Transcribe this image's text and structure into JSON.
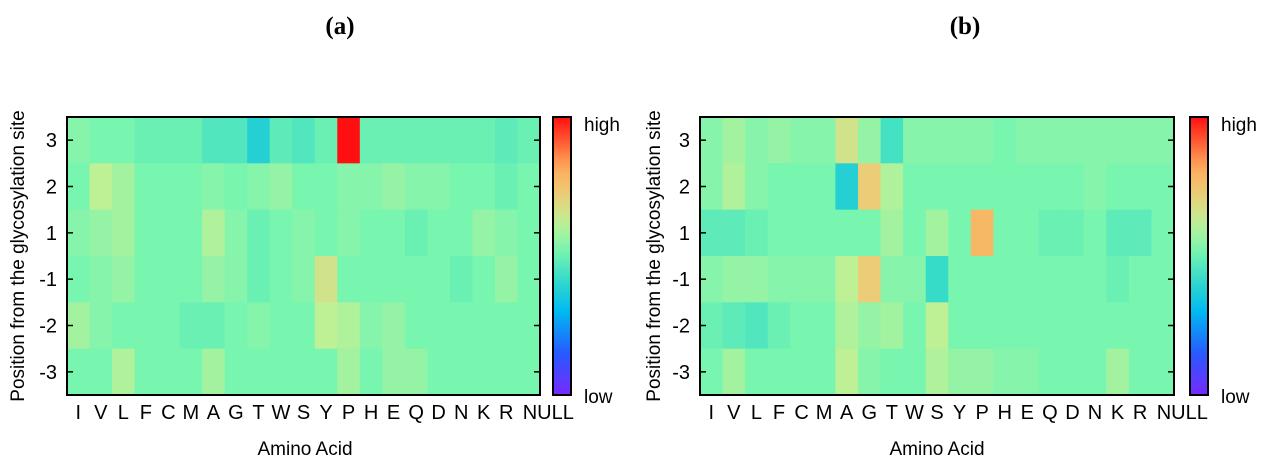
{
  "chart_data": [
    {
      "type": "heatmap",
      "panel_label": "(a)",
      "xlabel": "Amino Acid",
      "ylabel": "Position from the glycosylation site",
      "x_categories": [
        "I",
        "V",
        "L",
        "F",
        "C",
        "M",
        "A",
        "G",
        "T",
        "W",
        "S",
        "Y",
        "P",
        "H",
        "E",
        "Q",
        "D",
        "N",
        "K",
        "R",
        "NULL"
      ],
      "y_categories": [
        "3",
        "2",
        "1",
        "-1",
        "-2",
        "-3"
      ],
      "colorbar": {
        "high_label": "high",
        "low_label": "low",
        "colormap": "rainbow"
      },
      "value_range": [
        0,
        1
      ],
      "values": [
        [
          0.54,
          0.52,
          0.52,
          0.5,
          0.5,
          0.5,
          0.46,
          0.46,
          0.38,
          0.48,
          0.46,
          0.5,
          1.0,
          0.5,
          0.5,
          0.5,
          0.5,
          0.5,
          0.5,
          0.48,
          0.5
        ],
        [
          0.52,
          0.62,
          0.58,
          0.52,
          0.52,
          0.52,
          0.54,
          0.52,
          0.54,
          0.56,
          0.52,
          0.52,
          0.54,
          0.54,
          0.56,
          0.54,
          0.54,
          0.52,
          0.52,
          0.5,
          0.52
        ],
        [
          0.54,
          0.56,
          0.58,
          0.52,
          0.52,
          0.52,
          0.6,
          0.54,
          0.5,
          0.52,
          0.54,
          0.52,
          0.54,
          0.52,
          0.52,
          0.5,
          0.52,
          0.52,
          0.56,
          0.54,
          0.52
        ],
        [
          0.52,
          0.54,
          0.56,
          0.52,
          0.52,
          0.52,
          0.56,
          0.54,
          0.5,
          0.52,
          0.54,
          0.66,
          0.52,
          0.52,
          0.52,
          0.52,
          0.52,
          0.5,
          0.52,
          0.56,
          0.52
        ],
        [
          0.58,
          0.54,
          0.52,
          0.52,
          0.52,
          0.5,
          0.5,
          0.52,
          0.54,
          0.52,
          0.52,
          0.62,
          0.6,
          0.54,
          0.56,
          0.52,
          0.52,
          0.52,
          0.52,
          0.52,
          0.52
        ],
        [
          0.52,
          0.52,
          0.6,
          0.52,
          0.52,
          0.52,
          0.58,
          0.52,
          0.52,
          0.52,
          0.52,
          0.52,
          0.58,
          0.52,
          0.56,
          0.56,
          0.52,
          0.52,
          0.52,
          0.52,
          0.52
        ]
      ]
    },
    {
      "type": "heatmap",
      "panel_label": "(b)",
      "xlabel": "Amino Acid",
      "ylabel": "Position from the glycosylation site",
      "x_categories": [
        "I",
        "V",
        "L",
        "F",
        "C",
        "M",
        "A",
        "G",
        "T",
        "W",
        "S",
        "Y",
        "P",
        "H",
        "E",
        "Q",
        "D",
        "N",
        "K",
        "R",
        "NULL"
      ],
      "y_categories": [
        "3",
        "2",
        "1",
        "-1",
        "-2",
        "-3"
      ],
      "colorbar": {
        "high_label": "high",
        "low_label": "low",
        "colormap": "rainbow"
      },
      "value_range": [
        0,
        1
      ],
      "values": [
        [
          0.54,
          0.58,
          0.54,
          0.56,
          0.54,
          0.54,
          0.66,
          0.56,
          0.44,
          0.54,
          0.54,
          0.54,
          0.54,
          0.52,
          0.54,
          0.54,
          0.54,
          0.54,
          0.54,
          0.54,
          0.54
        ],
        [
          0.54,
          0.6,
          0.54,
          0.52,
          0.52,
          0.52,
          0.38,
          0.72,
          0.6,
          0.52,
          0.52,
          0.52,
          0.52,
          0.52,
          0.52,
          0.52,
          0.52,
          0.54,
          0.52,
          0.52,
          0.52
        ],
        [
          0.48,
          0.48,
          0.5,
          0.52,
          0.52,
          0.52,
          0.52,
          0.52,
          0.58,
          0.52,
          0.58,
          0.52,
          0.78,
          0.52,
          0.52,
          0.5,
          0.5,
          0.52,
          0.48,
          0.48,
          0.52
        ],
        [
          0.54,
          0.56,
          0.56,
          0.54,
          0.54,
          0.54,
          0.62,
          0.72,
          0.54,
          0.54,
          0.42,
          0.52,
          0.52,
          0.52,
          0.52,
          0.52,
          0.52,
          0.52,
          0.5,
          0.52,
          0.52
        ],
        [
          0.5,
          0.48,
          0.46,
          0.5,
          0.52,
          0.52,
          0.6,
          0.56,
          0.58,
          0.52,
          0.62,
          0.52,
          0.52,
          0.52,
          0.52,
          0.52,
          0.52,
          0.52,
          0.52,
          0.52,
          0.52
        ],
        [
          0.52,
          0.58,
          0.52,
          0.52,
          0.52,
          0.52,
          0.62,
          0.54,
          0.52,
          0.52,
          0.6,
          0.56,
          0.56,
          0.54,
          0.54,
          0.52,
          0.52,
          0.52,
          0.58,
          0.52,
          0.52
        ]
      ]
    }
  ]
}
